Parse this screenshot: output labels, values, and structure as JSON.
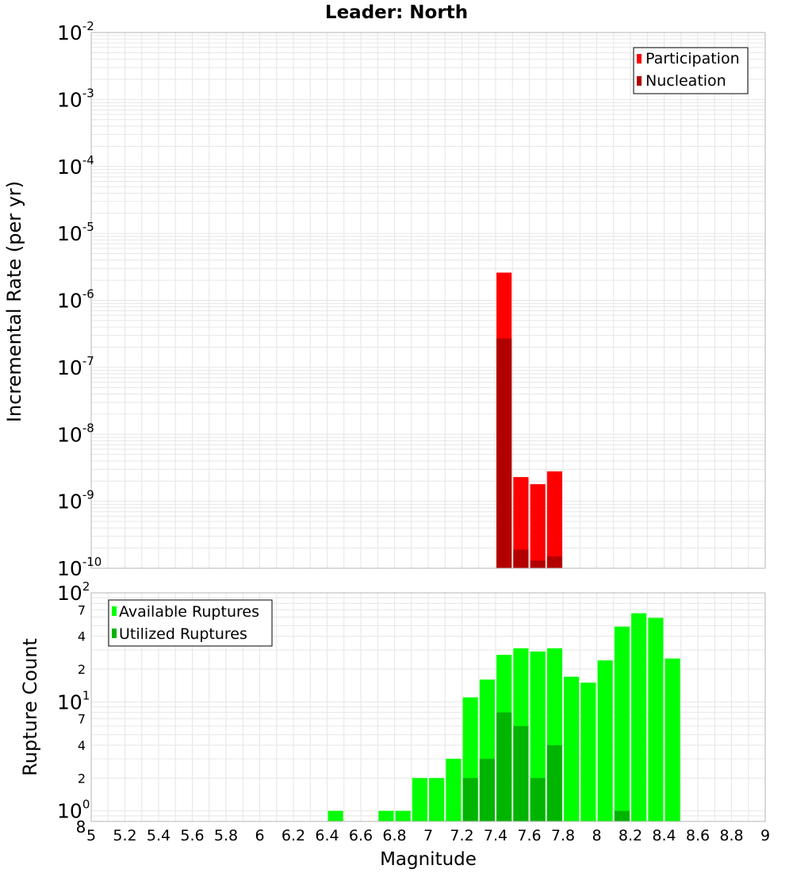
{
  "title": "Leader: North",
  "colors": {
    "participation": "#ff0000",
    "nucleation": "#b20000",
    "available": "#00ff00",
    "utilized": "#00b400",
    "grid": "#e6e6e6",
    "frame": "#b4b4b4"
  },
  "chart_data": [
    {
      "type": "bar",
      "name": "incremental-rate",
      "yscale": "log",
      "ylabel": "Incremental Rate (per yr)",
      "xlabel": "",
      "xlim": [
        5,
        9
      ],
      "ylim": [
        1e-10,
        0.01
      ],
      "ytick_labels": [
        {
          "base": "10",
          "exp": "-10"
        },
        {
          "base": "10",
          "exp": "-9"
        },
        {
          "base": "10",
          "exp": "-8"
        },
        {
          "base": "10",
          "exp": "-7"
        },
        {
          "base": "10",
          "exp": "-6"
        },
        {
          "base": "10",
          "exp": "-5"
        },
        {
          "base": "10",
          "exp": "-4"
        },
        {
          "base": "10",
          "exp": "-3"
        },
        {
          "base": "10",
          "exp": "-2"
        }
      ],
      "legend": {
        "position": "top-right",
        "entries": [
          "Participation",
          "Nucleation"
        ]
      },
      "series": [
        {
          "name": "Participation",
          "color": "#ff0000",
          "x": [
            7.45,
            7.55,
            7.65,
            7.75
          ],
          "values": [
            2.6e-06,
            2.3e-09,
            1.8e-09,
            2.8e-09
          ]
        },
        {
          "name": "Nucleation",
          "color": "#b20000",
          "x": [
            7.45,
            7.55,
            7.65,
            7.75
          ],
          "values": [
            2.7e-07,
            1.9e-10,
            1.3e-10,
            1.5e-10
          ]
        }
      ]
    },
    {
      "type": "bar",
      "name": "rupture-count",
      "yscale": "log",
      "ylabel": "Rupture Count",
      "xlabel": "Magnitude",
      "xlim": [
        5,
        9
      ],
      "ylim": [
        0.8,
        100
      ],
      "xtick_labels": [
        "5",
        "5.2",
        "5.4",
        "5.6",
        "5.8",
        "6",
        "6.2",
        "6.4",
        "6.6",
        "6.8",
        "7",
        "7.2",
        "7.4",
        "7.6",
        "7.8",
        "8",
        "8.2",
        "8.4",
        "8.6",
        "8.8",
        "9"
      ],
      "ytick_labels": [
        {
          "value": 0.8,
          "base": "8",
          "exp": ""
        },
        {
          "value": 1,
          "base": "10",
          "exp": "0"
        },
        {
          "value": 2,
          "base": "2",
          "exp": ""
        },
        {
          "value": 4,
          "base": "4",
          "exp": ""
        },
        {
          "value": 7,
          "base": "7",
          "exp": ""
        },
        {
          "value": 10,
          "base": "10",
          "exp": "1"
        },
        {
          "value": 20,
          "base": "2",
          "exp": ""
        },
        {
          "value": 40,
          "base": "4",
          "exp": ""
        },
        {
          "value": 70,
          "base": "7",
          "exp": ""
        },
        {
          "value": 100,
          "base": "10",
          "exp": "2"
        }
      ],
      "legend": {
        "position": "top-left",
        "entries": [
          "Available Ruptures",
          "Utilized Ruptures"
        ]
      },
      "series": [
        {
          "name": "Available Ruptures",
          "color": "#00ff00",
          "x": [
            6.45,
            6.75,
            6.85,
            6.95,
            7.05,
            7.15,
            7.25,
            7.35,
            7.45,
            7.55,
            7.65,
            7.75,
            7.85,
            7.95,
            8.05,
            8.15,
            8.25,
            8.35,
            8.45
          ],
          "values": [
            1,
            1,
            1,
            2,
            2,
            3,
            11,
            16,
            27,
            31,
            29,
            31,
            17,
            15,
            24,
            49,
            65,
            59,
            25
          ]
        },
        {
          "name": "Utilized Ruptures",
          "color": "#00b400",
          "x": [
            7.25,
            7.35,
            7.45,
            7.55,
            7.65,
            7.75,
            8.15
          ],
          "values": [
            2,
            3,
            8,
            6,
            2,
            4,
            1
          ]
        }
      ]
    }
  ]
}
